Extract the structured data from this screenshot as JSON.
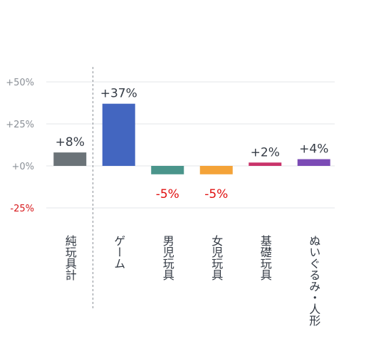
{
  "chart_data": {
    "type": "bar",
    "categories": [
      "純玩具計",
      "ゲーム",
      "男児玩具",
      "女児玩具",
      "基礎玩具",
      "ぬいぐるみ・人形"
    ],
    "values": [
      8,
      37,
      -5,
      -5,
      2,
      4
    ],
    "value_labels": [
      "+8%",
      "+37%",
      "-5%",
      "-5%",
      "+2%",
      "+4%"
    ],
    "colors": [
      "#6b7378",
      "#4366c0",
      "#4a958b",
      "#f4a338",
      "#c9336a",
      "#7b4bb5"
    ],
    "y_ticks": [
      {
        "value": 50,
        "label": "+50%"
      },
      {
        "value": 25,
        "label": "+25%"
      },
      {
        "value": 0,
        "label": "+0%"
      },
      {
        "value": -25,
        "label": "-25%"
      }
    ],
    "ylim": [
      -25,
      50
    ],
    "grid": true,
    "negative_color": "#e01010",
    "separator_after_category": 0
  }
}
